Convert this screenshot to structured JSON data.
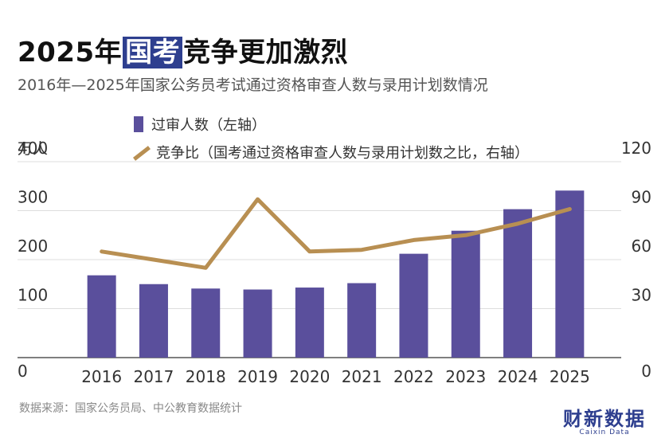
{
  "title": {
    "part1": "2025年",
    "highlight": "国考",
    "part2": "竞争更加激烈"
  },
  "subtitle": "2016年—2025年国家公务员考试通过资格审查人数与录用计划数情况",
  "legend": {
    "bar": "过审人数（左轴）",
    "line": "竞争比（国考通过资格审查人数与录用计划数之比，右轴）"
  },
  "unit_label": "万人",
  "source": "数据来源：国家公务员局、中公教育数据统计",
  "brand": {
    "name": "财新数据",
    "sub": "Caixin Data"
  },
  "colors": {
    "bar": "#5a4f9c",
    "line": "#b88f52",
    "grid": "#dddddd",
    "title_highlight": "#2e3f8f"
  },
  "chart_data": {
    "type": "bar",
    "categories": [
      "2016",
      "2017",
      "2018",
      "2019",
      "2020",
      "2021",
      "2022",
      "2023",
      "2024",
      "2025"
    ],
    "series": [
      {
        "name": "过审人数（左轴）",
        "type": "bar",
        "axis": "left",
        "values": [
          168,
          150,
          141,
          139,
          143,
          152,
          212,
          259,
          303,
          341
        ]
      },
      {
        "name": "竞争比（国考通过资格审查人数与录用计划数之比，右轴）",
        "type": "line",
        "axis": "right",
        "values": [
          65,
          60,
          55,
          97,
          65,
          66,
          72,
          75,
          82,
          91
        ]
      }
    ],
    "y_left": {
      "ylim": [
        0,
        400
      ],
      "ticks": [
        "0",
        "100",
        "200",
        "300",
        "400"
      ],
      "label": "万人"
    },
    "y_right": {
      "ylim": [
        0,
        120
      ],
      "ticks": [
        "0",
        "30",
        "60",
        "90",
        "120"
      ]
    },
    "grid": true,
    "legend_position": "top-left"
  }
}
